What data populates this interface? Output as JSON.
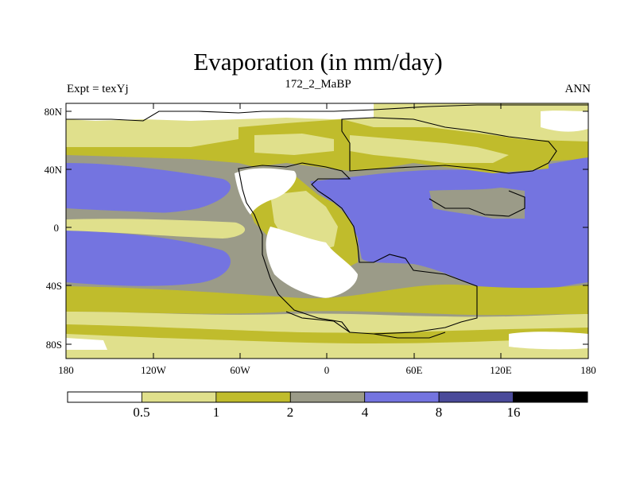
{
  "title": "Evaporation (in mm/day)",
  "left_label": "Expt = texYj",
  "center_label": "172_2_MaBP",
  "right_label": "ANN",
  "lat_ticks": [
    "80N",
    "40N",
    "0",
    "40S",
    "80S"
  ],
  "lon_ticks": [
    "180",
    "120W",
    "60W",
    "0",
    "60E",
    "120E",
    "180"
  ],
  "colorbar": {
    "boundaries": [
      "0.5",
      "1",
      "2",
      "4",
      "8",
      "16"
    ],
    "colors": [
      "#ffffff",
      "#e0e08c",
      "#c0bc2c",
      "#9b9b88",
      "#7474e0",
      "#4a4a9a",
      "#000000"
    ]
  }
}
